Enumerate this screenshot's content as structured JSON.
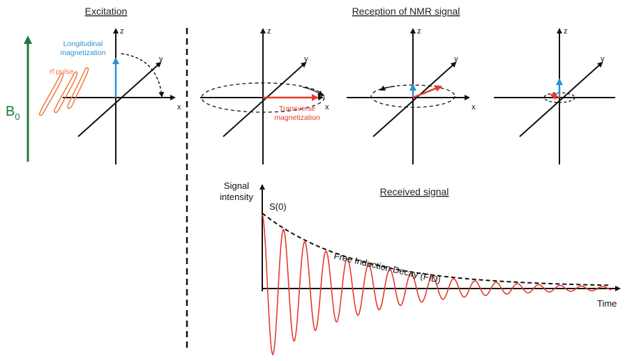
{
  "headings": {
    "excitation": "Excitation",
    "reception": "Reception of NMR signal",
    "received": "Received signal"
  },
  "field_label": {
    "main": "B",
    "sub": "0"
  },
  "axis_labels": {
    "x": "x",
    "y": "y",
    "z": "z"
  },
  "excitation_panel": {
    "longitudinal_line1": "Longitudinal",
    "longitudinal_line2": "magnetization",
    "rf_pulse": "rf pulse"
  },
  "reception_panel": {
    "transverse_line1": "Transverse",
    "transverse_line2": "magnetization"
  },
  "signal_plot": {
    "y_label_line1": "Signal",
    "y_label_line2": "intensity",
    "x_label": "Time",
    "s0_label": "S(0)",
    "envelope_label": "Free Induction Decay (FID)"
  },
  "colors": {
    "field": "#1e7a3a",
    "longitudinal": "#2b8fd6",
    "transverse": "#e8372a",
    "rf": "#f07a3c",
    "fid": "#e8372a",
    "axes": "#111111"
  }
}
